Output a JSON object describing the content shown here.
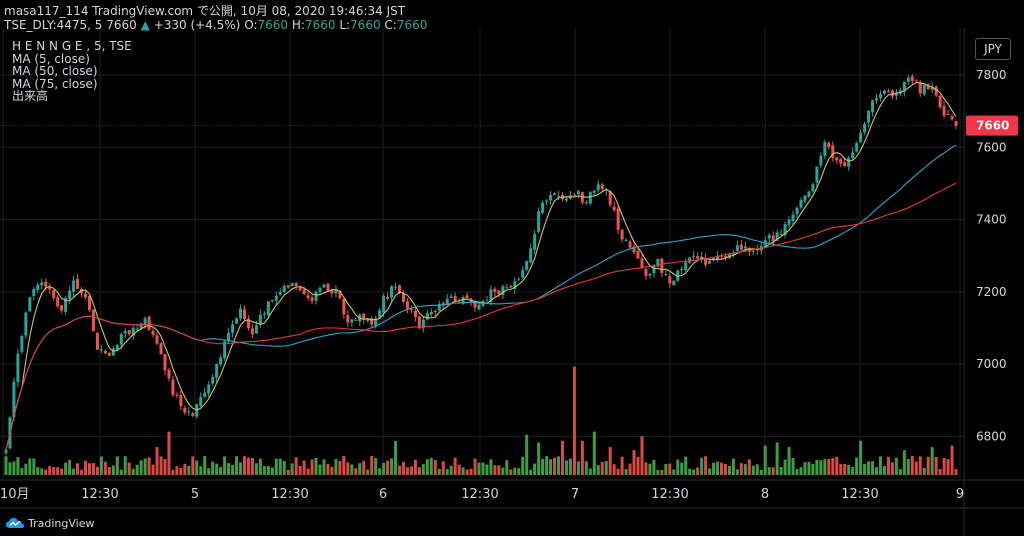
{
  "header": {
    "line1": "masa117_114 TradingView.com で公開, 10月 08, 2020 19:46:34 JST",
    "symbol": "TSE_DLY:4475, 5 7660",
    "change_arrow": "▲",
    "change": "+330 (+4.5%)",
    "o_label": "O:",
    "o_value": "7660",
    "h_label": "H:",
    "h_value": "7660",
    "l_label": "L:",
    "l_value": "7660",
    "c_label": "C:",
    "c_value": "7660"
  },
  "legend": {
    "title": "H E N N G E , 5, TSE",
    "ma5": "MA (5, close)",
    "ma50": "MA (50, close)",
    "ma75": "MA (75, close)",
    "volume": "出来高"
  },
  "currency_button": "JPY",
  "branding": "TradingView",
  "chart_data": {
    "type": "candlestick",
    "interval_minutes": 5,
    "y_ticks": [
      6800,
      7000,
      7200,
      7400,
      7600,
      7800
    ],
    "ylim": [
      6685,
      7930
    ],
    "last_price": 7660,
    "x_labels": [
      "10月",
      "12:30",
      "5",
      "12:30",
      "6",
      "12:30",
      "7",
      "12:30",
      "8",
      "12:30",
      "9"
    ],
    "colors": {
      "up": "#26a69a",
      "down": "#ef5350",
      "ma5": "#d4c15b",
      "ma50": "#2aa7c9",
      "ma75": "#e53935",
      "price_badge": "#f23645",
      "vol_up": "#3f9b46",
      "vol_down": "#d84a43"
    },
    "close_keypoints": [
      [
        0,
        6760
      ],
      [
        2,
        6950
      ],
      [
        5,
        7150
      ],
      [
        8,
        7220
      ],
      [
        11,
        7200
      ],
      [
        14,
        7150
      ],
      [
        17,
        7220
      ],
      [
        20,
        7180
      ],
      [
        23,
        7050
      ],
      [
        26,
        7020
      ],
      [
        29,
        7080
      ],
      [
        32,
        7100
      ],
      [
        35,
        7120
      ],
      [
        38,
        7050
      ],
      [
        41,
        6950
      ],
      [
        44,
        6880
      ],
      [
        47,
        6860
      ],
      [
        50,
        6920
      ],
      [
        53,
        7000
      ],
      [
        56,
        7080
      ],
      [
        59,
        7150
      ],
      [
        62,
        7080
      ],
      [
        65,
        7150
      ],
      [
        68,
        7190
      ],
      [
        71,
        7220
      ],
      [
        74,
        7200
      ],
      [
        77,
        7180
      ],
      [
        80,
        7220
      ],
      [
        83,
        7200
      ],
      [
        86,
        7120
      ],
      [
        89,
        7130
      ],
      [
        92,
        7110
      ],
      [
        95,
        7180
      ],
      [
        98,
        7220
      ],
      [
        101,
        7160
      ],
      [
        104,
        7110
      ],
      [
        107,
        7150
      ],
      [
        110,
        7170
      ],
      [
        113,
        7180
      ],
      [
        116,
        7170
      ],
      [
        119,
        7160
      ],
      [
        122,
        7200
      ],
      [
        125,
        7210
      ],
      [
        128,
        7220
      ],
      [
        131,
        7280
      ],
      [
        134,
        7420
      ],
      [
        137,
        7480
      ],
      [
        140,
        7460
      ],
      [
        143,
        7480
      ],
      [
        146,
        7450
      ],
      [
        149,
        7510
      ],
      [
        152,
        7450
      ],
      [
        155,
        7350
      ],
      [
        158,
        7300
      ],
      [
        161,
        7250
      ],
      [
        164,
        7280
      ],
      [
        167,
        7230
      ],
      [
        170,
        7260
      ],
      [
        173,
        7300
      ],
      [
        176,
        7280
      ],
      [
        179,
        7300
      ],
      [
        182,
        7310
      ],
      [
        185,
        7320
      ],
      [
        188,
        7300
      ],
      [
        191,
        7340
      ],
      [
        194,
        7360
      ],
      [
        197,
        7400
      ],
      [
        200,
        7450
      ],
      [
        203,
        7500
      ],
      [
        206,
        7620
      ],
      [
        209,
        7560
      ],
      [
        212,
        7560
      ],
      [
        215,
        7640
      ],
      [
        218,
        7720
      ],
      [
        221,
        7760
      ],
      [
        224,
        7750
      ],
      [
        227,
        7790
      ],
      [
        230,
        7760
      ],
      [
        233,
        7770
      ],
      [
        236,
        7700
      ],
      [
        239,
        7660
      ]
    ],
    "volume_spikes": [
      [
        28,
        60
      ],
      [
        31,
        40
      ],
      [
        38,
        90
      ],
      [
        41,
        140
      ],
      [
        47,
        60
      ],
      [
        55,
        60
      ],
      [
        62,
        55
      ],
      [
        70,
        45
      ],
      [
        77,
        50
      ],
      [
        84,
        45
      ],
      [
        93,
        55
      ],
      [
        98,
        110
      ],
      [
        105,
        35
      ],
      [
        112,
        30
      ],
      [
        120,
        40
      ],
      [
        131,
        130
      ],
      [
        134,
        105
      ],
      [
        140,
        110
      ],
      [
        143,
        350
      ],
      [
        145,
        110
      ],
      [
        148,
        140
      ],
      [
        152,
        90
      ],
      [
        158,
        80
      ],
      [
        160,
        125
      ],
      [
        170,
        40
      ],
      [
        180,
        40
      ],
      [
        188,
        30
      ],
      [
        191,
        95
      ],
      [
        194,
        105
      ],
      [
        197,
        90
      ],
      [
        200,
        25
      ],
      [
        210,
        35
      ],
      [
        215,
        110
      ],
      [
        220,
        60
      ],
      [
        226,
        80
      ],
      [
        230,
        60
      ],
      [
        233,
        90
      ],
      [
        236,
        55
      ],
      [
        238,
        95
      ]
    ]
  }
}
